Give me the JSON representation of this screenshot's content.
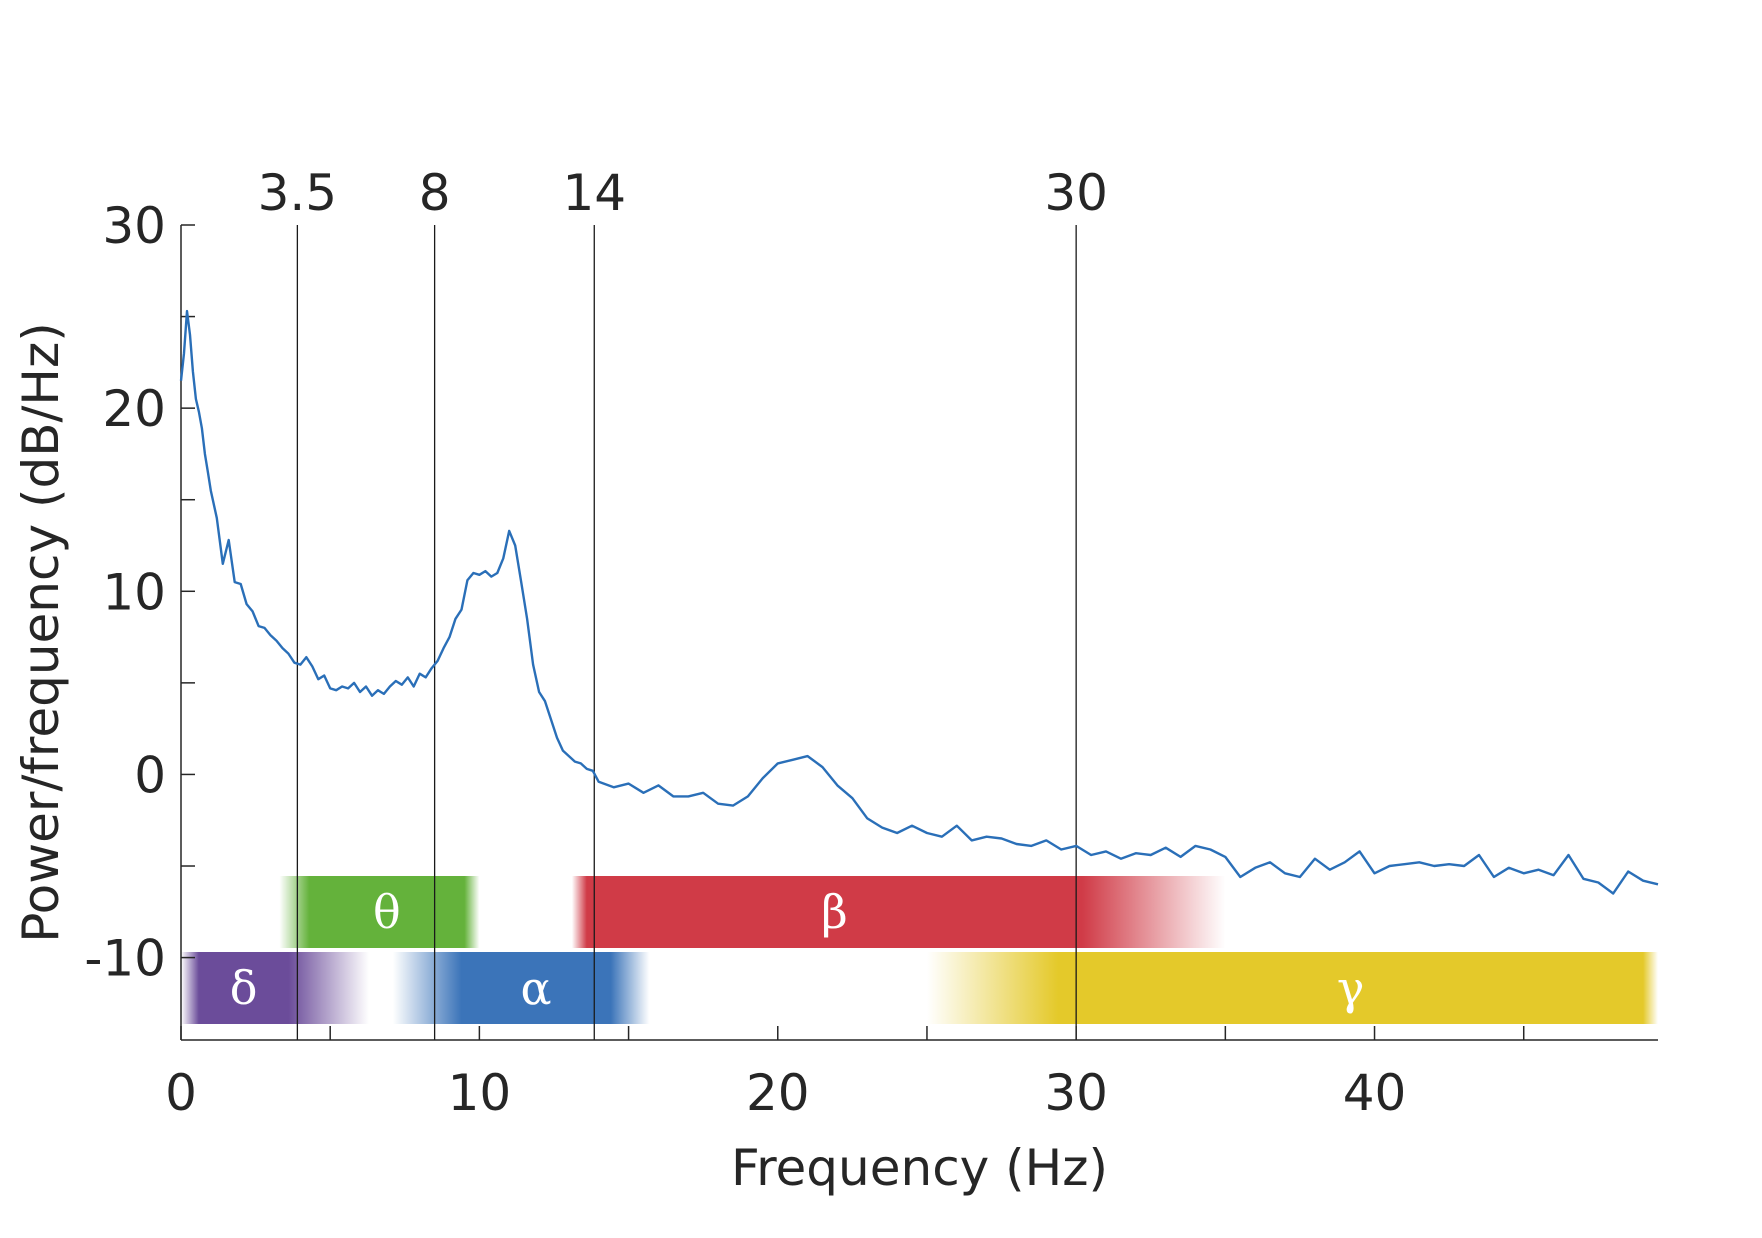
{
  "chart_data": {
    "type": "line",
    "title": "",
    "xlabel": "Frequency (Hz)",
    "ylabel": "Power/frequency (dB/Hz)",
    "xlim": [
      0,
      49.5
    ],
    "ylim": [
      -14.5,
      30
    ],
    "x_ticks": [
      0,
      10,
      20,
      30,
      40
    ],
    "x_tick_labels": [
      "0",
      "10",
      "20",
      "30",
      "40"
    ],
    "x_minor_ticks": [
      5,
      15,
      25,
      35,
      45
    ],
    "y_ticks": [
      -10,
      0,
      10,
      20,
      30
    ],
    "y_tick_labels": [
      "-10",
      "0",
      "10",
      "20",
      "30"
    ],
    "y_minor_ticks": [
      -5,
      5,
      15,
      25
    ],
    "grid": false,
    "line_color": "#2a6fb8",
    "boundaries": [
      {
        "x": 3.9,
        "label": "3.5"
      },
      {
        "x": 8.5,
        "label": "8"
      },
      {
        "x": 13.85,
        "label": "14"
      },
      {
        "x": 30,
        "label": "30"
      }
    ],
    "bands": [
      {
        "symbol": "δ",
        "color": "#6b4c9a",
        "row": "lower",
        "from": 0,
        "to": 6.3,
        "solid_from": 0.6,
        "solid_to": 3.6
      },
      {
        "symbol": "θ",
        "color": "#64b23b",
        "row": "upper",
        "from": 3.3,
        "to": 10.0,
        "solid_from": 4.3,
        "solid_to": 9.5
      },
      {
        "symbol": "α",
        "color": "#3b74b9",
        "row": "lower",
        "from": 7.1,
        "to": 15.7,
        "solid_from": 9.4,
        "solid_to": 14.4
      },
      {
        "symbol": "β",
        "color": "#d03b47",
        "row": "upper",
        "from": 13.1,
        "to": 35.0,
        "solid_from": 13.6,
        "solid_to": 30.2
      },
      {
        "symbol": "γ",
        "color": "#e4c92a",
        "row": "lower",
        "from": 25.0,
        "to": 49.5,
        "solid_from": 29.4,
        "solid_to": 49.0
      }
    ],
    "series": [
      {
        "x": [
          0,
          0.1,
          0.2,
          0.3,
          0.4,
          0.5,
          0.6,
          0.7,
          0.8,
          0.9,
          1.0,
          1.2,
          1.4,
          1.6,
          1.8,
          2.0,
          2.2,
          2.4,
          2.6,
          2.8,
          3.0,
          3.2,
          3.4,
          3.6,
          3.8,
          4.0,
          4.2,
          4.4,
          4.6,
          4.8,
          5.0,
          5.2,
          5.4,
          5.6,
          5.8,
          6.0,
          6.2,
          6.4,
          6.6,
          6.8,
          7.0,
          7.2,
          7.4,
          7.6,
          7.8,
          8.0,
          8.2,
          8.4,
          8.6,
          8.8,
          9.0,
          9.2,
          9.4,
          9.6,
          9.8,
          10.0,
          10.2,
          10.4,
          10.6,
          10.8,
          11.0,
          11.2,
          11.4,
          11.6,
          11.8,
          12.0,
          12.2,
          12.4,
          12.6,
          12.8,
          13.0,
          13.2,
          13.4,
          13.6,
          13.8,
          14.0,
          14.5,
          15.0,
          15.5,
          16.0,
          16.5,
          17.0,
          17.5,
          18.0,
          18.5,
          19.0,
          19.5,
          20.0,
          20.5,
          21.0,
          21.5,
          22.0,
          22.5,
          23.0,
          23.5,
          24.0,
          24.5,
          25.0,
          25.5,
          26.0,
          26.5,
          27.0,
          27.5,
          28.0,
          28.5,
          29.0,
          29.5,
          30.0,
          30.5,
          31.0,
          31.5,
          32.0,
          32.5,
          33.0,
          33.5,
          34.0,
          34.5,
          35.0,
          35.5,
          36.0,
          36.5,
          37.0,
          37.5,
          38.0,
          38.5,
          39.0,
          39.5,
          40.0,
          40.5,
          41.0,
          41.5,
          42.0,
          42.5,
          43.0,
          43.5,
          44.0,
          44.5,
          45.0,
          45.5,
          46.0,
          46.5,
          47.0,
          47.5,
          48.0,
          48.5,
          49.0,
          49.5
        ],
        "y": [
          21.5,
          23.0,
          25.3,
          24.0,
          22.0,
          20.5,
          19.8,
          18.9,
          17.5,
          16.5,
          15.5,
          14.0,
          11.5,
          12.8,
          10.5,
          10.4,
          9.3,
          8.9,
          8.1,
          8.0,
          7.6,
          7.3,
          6.9,
          6.6,
          6.1,
          6.0,
          6.4,
          5.9,
          5.2,
          5.4,
          4.7,
          4.6,
          4.8,
          4.7,
          5.0,
          4.5,
          4.8,
          4.3,
          4.6,
          4.4,
          4.8,
          5.1,
          4.9,
          5.3,
          4.8,
          5.5,
          5.3,
          5.8,
          6.2,
          6.9,
          7.5,
          8.5,
          9.0,
          10.6,
          11.0,
          10.9,
          11.1,
          10.8,
          11.0,
          11.8,
          13.3,
          12.5,
          10.5,
          8.5,
          6.0,
          4.5,
          4.0,
          3.0,
          2.0,
          1.3,
          1.0,
          0.7,
          0.6,
          0.3,
          0.2,
          -0.4,
          -0.7,
          -0.5,
          -1.0,
          -0.6,
          -1.2,
          -1.2,
          -1.0,
          -1.6,
          -1.7,
          -1.2,
          -0.2,
          0.6,
          0.8,
          1.0,
          0.4,
          -0.6,
          -1.3,
          -2.4,
          -2.9,
          -3.2,
          -2.8,
          -3.2,
          -3.4,
          -2.8,
          -3.6,
          -3.4,
          -3.5,
          -3.8,
          -3.9,
          -3.6,
          -4.1,
          -3.9,
          -4.4,
          -4.2,
          -4.6,
          -4.3,
          -4.4,
          -4.0,
          -4.5,
          -3.9,
          -4.1,
          -4.5,
          -5.6,
          -5.1,
          -4.8,
          -5.4,
          -5.6,
          -4.6,
          -5.2,
          -4.8,
          -4.2,
          -5.4,
          -5.0,
          -4.9,
          -4.8,
          -5.0,
          -4.9,
          -5.0,
          -4.4,
          -5.6,
          -5.1,
          -5.4,
          -5.2,
          -5.5,
          -4.4,
          -5.7,
          -5.9,
          -6.5,
          -5.3,
          -5.8,
          -6.0
        ]
      }
    ]
  }
}
